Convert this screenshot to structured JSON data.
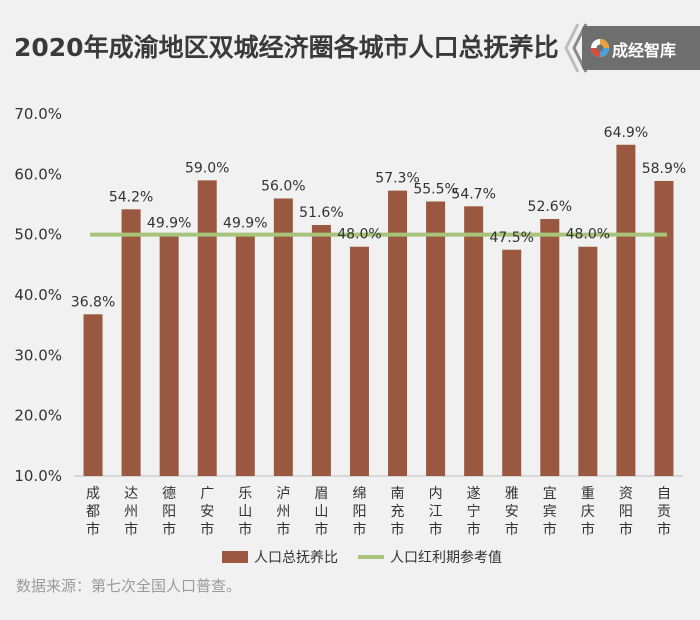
{
  "header": {
    "title": "2020年成渝地区双城经济圈各城市人口总抚养比"
  },
  "brand": {
    "name": "成经智库",
    "logo_icon": "swirl-logo-icon",
    "background": "#6e6e6e"
  },
  "footer": {
    "source": "数据来源：第七次全国人口普查。"
  },
  "chart_data": {
    "type": "bar",
    "categories": [
      "成都市",
      "达州市",
      "德阳市",
      "广安市",
      "乐山市",
      "泸州市",
      "眉山市",
      "绵阳市",
      "南充市",
      "内江市",
      "遂宁市",
      "雅安市",
      "宜宾市",
      "重庆市",
      "资阳市",
      "自贡市"
    ],
    "series": [
      {
        "name": "人口总抚养比",
        "type": "bar",
        "color": "#99583f",
        "values": [
          36.8,
          54.2,
          49.9,
          59.0,
          49.9,
          56.0,
          51.6,
          48.0,
          57.3,
          55.5,
          54.7,
          47.5,
          52.6,
          48.0,
          64.9,
          58.9
        ],
        "labels": [
          "36.8%",
          "54.2%",
          "49.9%",
          "59.0%",
          "49.9%",
          "56.0%",
          "51.6%",
          "48.0%",
          "57.3%",
          "55.5%",
          "54.7%",
          "47.5%",
          "52.6%",
          "48.0%",
          "64.9%",
          "58.9%"
        ]
      },
      {
        "name": "人口红利期参考值",
        "type": "line",
        "color": "#a8c47a",
        "values": [
          50,
          50,
          50,
          50,
          50,
          50,
          50,
          50,
          50,
          50,
          50,
          50,
          50,
          50,
          50,
          50
        ]
      }
    ],
    "ylim": [
      10,
      70
    ],
    "yticks": [
      10,
      20,
      30,
      40,
      50,
      60,
      70
    ],
    "ytick_labels": [
      "10.0%",
      "20.0%",
      "30.0%",
      "40.0%",
      "50.0%",
      "60.0%",
      "70.0%"
    ],
    "grid": false,
    "legend_position": "bottom"
  }
}
